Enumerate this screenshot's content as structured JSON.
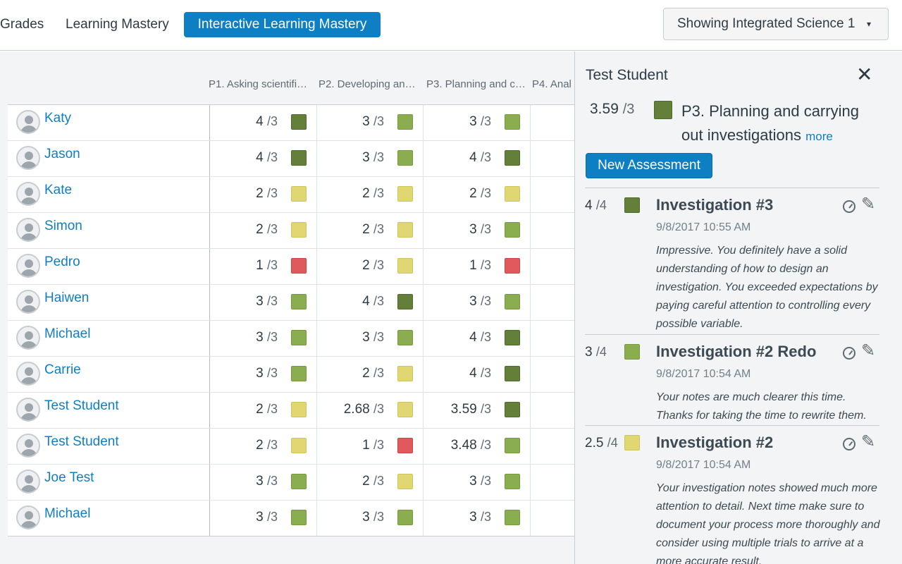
{
  "tabs": {
    "grades": "Grades",
    "learning_mastery": "Learning Mastery",
    "interactive_learning_mastery": "Interactive Learning Mastery"
  },
  "course_select": {
    "label": "Showing Integrated Science 1",
    "caret": "▾"
  },
  "columns": [
    "P1. Asking scientifi…",
    "P2. Developing an…",
    "P3. Planning and c…",
    "P4. Anal"
  ],
  "students": [
    {
      "name": "Katy",
      "scores": [
        {
          "v": "4",
          "d": "/3",
          "lvl": "exceeds"
        },
        {
          "v": "3",
          "d": "/3",
          "lvl": "mastery"
        },
        {
          "v": "3",
          "d": "/3",
          "lvl": "mastery"
        }
      ]
    },
    {
      "name": "Jason",
      "scores": [
        {
          "v": "4",
          "d": "/3",
          "lvl": "exceeds"
        },
        {
          "v": "3",
          "d": "/3",
          "lvl": "mastery"
        },
        {
          "v": "4",
          "d": "/3",
          "lvl": "exceeds"
        }
      ]
    },
    {
      "name": "Kate",
      "scores": [
        {
          "v": "2",
          "d": "/3",
          "lvl": "near"
        },
        {
          "v": "2",
          "d": "/3",
          "lvl": "near"
        },
        {
          "v": "2",
          "d": "/3",
          "lvl": "near"
        }
      ]
    },
    {
      "name": "Simon",
      "scores": [
        {
          "v": "2",
          "d": "/3",
          "lvl": "near"
        },
        {
          "v": "2",
          "d": "/3",
          "lvl": "near"
        },
        {
          "v": "3",
          "d": "/3",
          "lvl": "mastery"
        }
      ]
    },
    {
      "name": "Pedro",
      "scores": [
        {
          "v": "1",
          "d": "/3",
          "lvl": "below"
        },
        {
          "v": "2",
          "d": "/3",
          "lvl": "near"
        },
        {
          "v": "1",
          "d": "/3",
          "lvl": "below"
        }
      ]
    },
    {
      "name": "Haiwen",
      "scores": [
        {
          "v": "3",
          "d": "/3",
          "lvl": "mastery"
        },
        {
          "v": "4",
          "d": "/3",
          "lvl": "exceeds"
        },
        {
          "v": "3",
          "d": "/3",
          "lvl": "mastery"
        }
      ]
    },
    {
      "name": "Michael",
      "scores": [
        {
          "v": "3",
          "d": "/3",
          "lvl": "mastery"
        },
        {
          "v": "3",
          "d": "/3",
          "lvl": "mastery"
        },
        {
          "v": "4",
          "d": "/3",
          "lvl": "exceeds"
        }
      ]
    },
    {
      "name": "Carrie",
      "scores": [
        {
          "v": "3",
          "d": "/3",
          "lvl": "mastery"
        },
        {
          "v": "2",
          "d": "/3",
          "lvl": "near"
        },
        {
          "v": "4",
          "d": "/3",
          "lvl": "exceeds"
        }
      ]
    },
    {
      "name": "Test Student",
      "scores": [
        {
          "v": "2",
          "d": "/3",
          "lvl": "near"
        },
        {
          "v": "2.68",
          "d": "/3",
          "lvl": "near"
        },
        {
          "v": "3.59",
          "d": "/3",
          "lvl": "exceeds"
        }
      ]
    },
    {
      "name": "Test Student",
      "scores": [
        {
          "v": "2",
          "d": "/3",
          "lvl": "near"
        },
        {
          "v": "1",
          "d": "/3",
          "lvl": "below"
        },
        {
          "v": "3.48",
          "d": "/3",
          "lvl": "mastery"
        }
      ]
    },
    {
      "name": "Joe Test",
      "scores": [
        {
          "v": "3",
          "d": "/3",
          "lvl": "mastery"
        },
        {
          "v": "2",
          "d": "/3",
          "lvl": "near"
        },
        {
          "v": "3",
          "d": "/3",
          "lvl": "mastery"
        }
      ]
    },
    {
      "name": "Michael",
      "scores": [
        {
          "v": "3",
          "d": "/3",
          "lvl": "mastery"
        },
        {
          "v": "3",
          "d": "/3",
          "lvl": "mastery"
        },
        {
          "v": "3",
          "d": "/3",
          "lvl": "mastery"
        }
      ]
    }
  ],
  "panel": {
    "student_name": "Test Student",
    "close_glyph": "✕",
    "aggregate_score": "3.59",
    "aggregate_denominator": "/3",
    "aggregate_level": "exceeds",
    "outcome_title": "P3. Planning and carrying out investigations",
    "more_label": "more",
    "new_assessment_label": "New Assessment",
    "pencil_glyph": "✎",
    "assessments": [
      {
        "score": "4",
        "denominator": "/4",
        "level": "exceeds",
        "title": "Investigation #3",
        "date": "9/8/2017 10:55 AM",
        "comment": "Impressive. You definitely have a solid understanding of how to design an investigation. You exceeded expectations by paying careful attention to controlling every possible variable."
      },
      {
        "score": "3",
        "denominator": "/4",
        "level": "mastery",
        "title": "Investigation #2 Redo",
        "date": "9/8/2017 10:54 AM",
        "comment": "Your notes are much clearer this time. Thanks for taking the time to rewrite them."
      },
      {
        "score": "2.5",
        "denominator": "/4",
        "level": "near",
        "title": "Investigation #2",
        "date": "9/8/2017 10:54 AM",
        "comment": "Your investigation notes showed much more attention to detail. Next time make sure to document your process more thoroughly and consider using multiple trials to arrive at a more accurate result."
      }
    ]
  },
  "colors": {
    "exceeds": "#647f3a",
    "mastery": "#89ad4f",
    "near": "#e0d773",
    "below": "#e0595c",
    "link": "#0e7fc3"
  }
}
